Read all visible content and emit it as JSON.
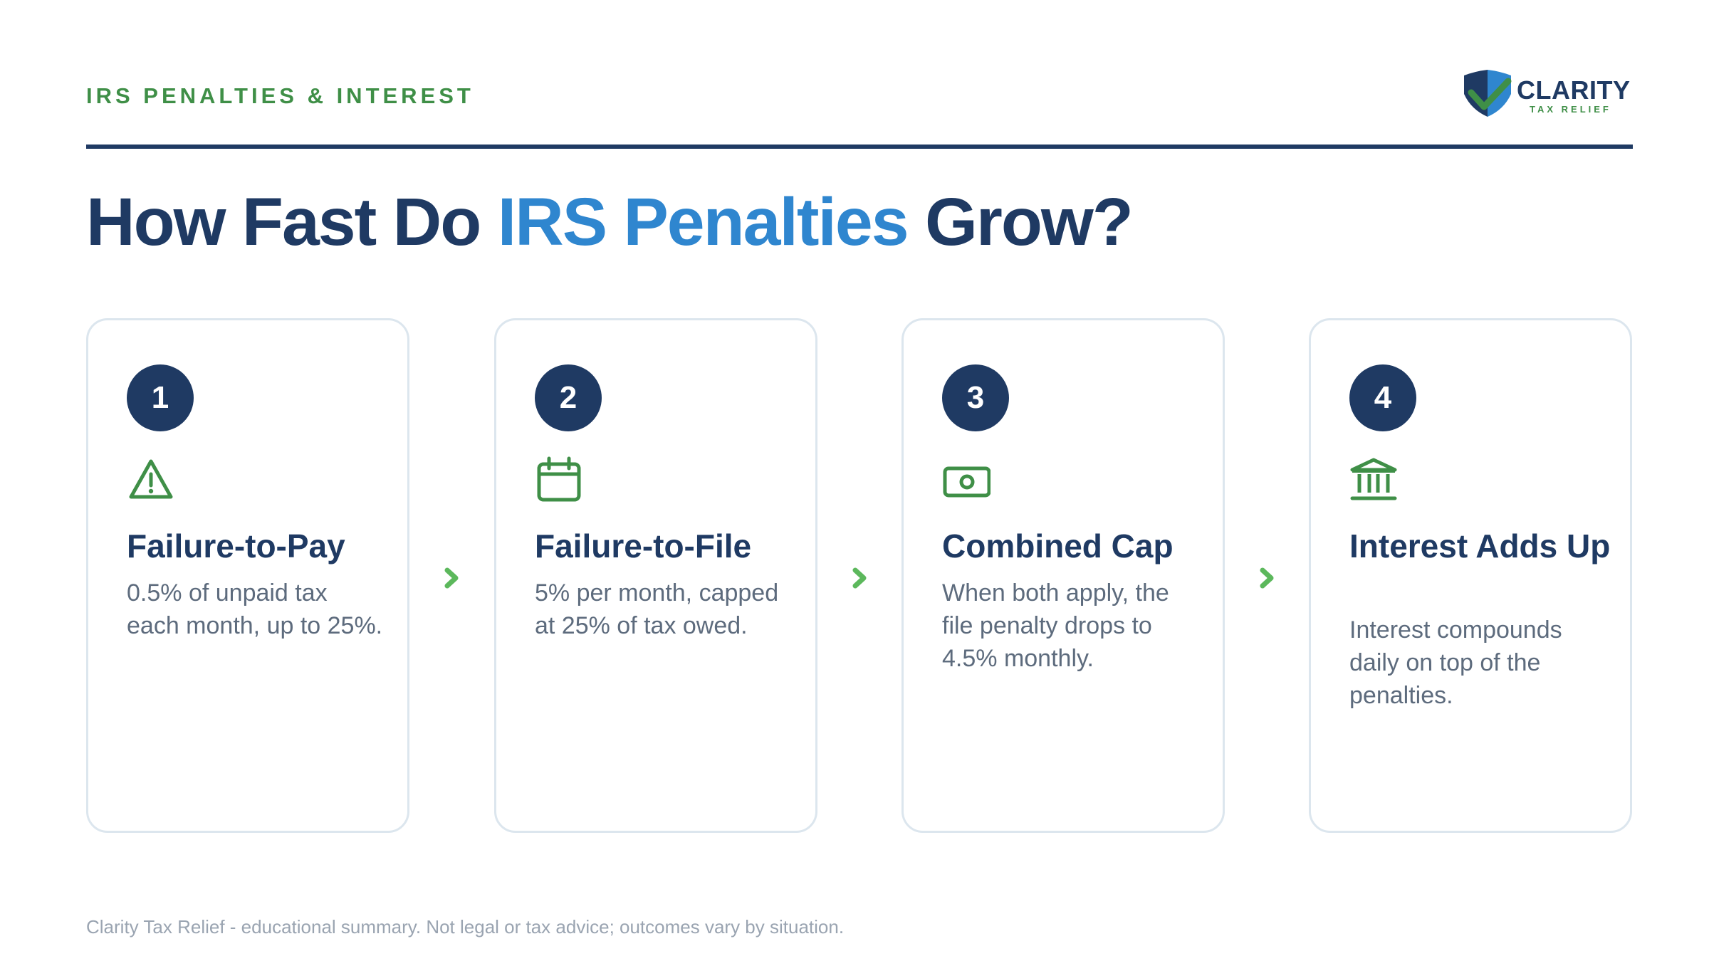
{
  "header": {
    "eyebrow": "IRS PENALTIES & INTEREST",
    "logo_name": "CLARITY",
    "logo_sub": "TAX RELIEF"
  },
  "title": {
    "part1": "How Fast Do ",
    "accent": "IRS Penalties",
    "part2": " Grow?"
  },
  "cards": [
    {
      "number": "1",
      "icon": "warning-triangle-icon",
      "title": "Failure-to-Pay",
      "text": "0.5% of unpaid tax each month, up to 25%."
    },
    {
      "number": "2",
      "icon": "calendar-icon",
      "title": "Failure-to-File",
      "text": "5% per month, capped at 25% of tax owed."
    },
    {
      "number": "3",
      "icon": "money-bill-icon",
      "title": "Combined Cap",
      "text": "When both apply, the file penalty drops to 4.5% monthly."
    },
    {
      "number": "4",
      "icon": "bank-icon",
      "title": "Interest Adds Up",
      "text": "Interest compounds daily on top of the penalties."
    }
  ],
  "footer": "Clarity Tax Relief - educational summary. Not legal or tax advice; outcomes vary by situation.",
  "colors": {
    "navy": "#1f3a63",
    "accent_blue": "#2f86cf",
    "green": "#3f8f47",
    "chevron_green": "#5cb85c",
    "card_border": "#dce6ee",
    "body_text": "#5d6b7d",
    "footer_text": "#9aa4b1"
  }
}
